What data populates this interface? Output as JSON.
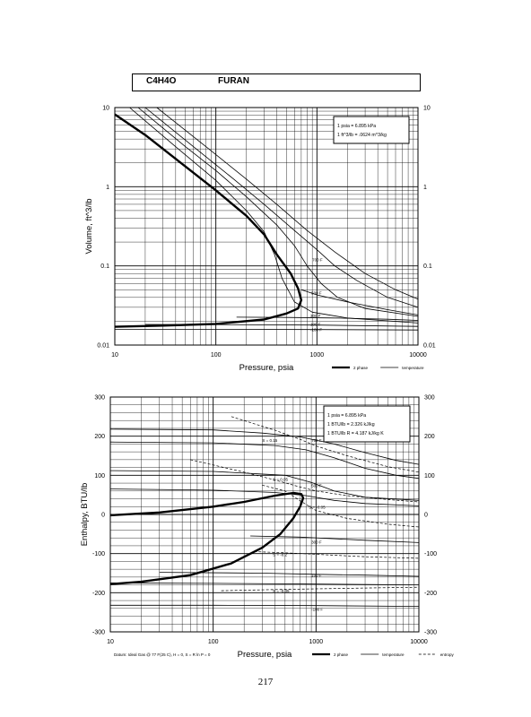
{
  "header": {
    "formula": "C4H4O",
    "name": "FURAN"
  },
  "page_number": "217",
  "chart_data": [
    {
      "type": "line",
      "title": "",
      "xlabel": "Pressure,  psia",
      "ylabel": "Volume, ft^3/lb",
      "xscale": "log",
      "yscale": "log",
      "xlim": [
        10,
        10000
      ],
      "ylim": [
        0.01,
        10
      ],
      "x_ticks": [
        "10",
        "100",
        "1000",
        "10000"
      ],
      "y_ticks": [
        "10",
        "1",
        "0.1",
        "0.01"
      ],
      "grid": true,
      "legend_position": "bottom-right",
      "legend": [
        {
          "label": "2 phase",
          "style": "thick"
        },
        {
          "label": "temperature",
          "style": "thin"
        }
      ],
      "note_position": "top-right",
      "notes": [
        "1 psia = 6.895 kPa",
        "1 ft^3/lb = .0624 m^3/kg"
      ],
      "series": [
        {
          "name": "2 phase",
          "kind": "dome",
          "style": "thick",
          "points": [
            [
              10,
              8.2
            ],
            [
              20,
              4.5
            ],
            [
              50,
              1.8
            ],
            [
              100,
              0.9
            ],
            [
              200,
              0.43
            ],
            [
              300,
              0.25
            ],
            [
              400,
              0.14
            ],
            [
              550,
              0.08
            ],
            [
              650,
              0.052
            ],
            [
              700,
              0.037
            ],
            [
              650,
              0.029
            ],
            [
              500,
              0.025
            ],
            [
              300,
              0.021
            ],
            [
              100,
              0.0185
            ],
            [
              30,
              0.0176
            ],
            [
              10,
              0.017
            ]
          ]
        },
        {
          "name": "",
          "kind": "isotherm",
          "style": "thin",
          "points": [
            [
              14,
              10
            ],
            [
              40,
              3.2
            ],
            [
              100,
              1.2
            ],
            [
              200,
              0.5
            ],
            [
              300,
              0.27
            ],
            [
              380,
              0.14
            ],
            [
              450,
              0.07
            ],
            [
              600,
              0.035
            ],
            [
              900,
              0.026
            ],
            [
              2000,
              0.022
            ],
            [
              10000,
              0.019
            ]
          ]
        },
        {
          "name": "",
          "kind": "isotherm",
          "style": "thin",
          "points": [
            [
              17,
              10
            ],
            [
              50,
              3.2
            ],
            [
              100,
              1.6
            ],
            [
              200,
              0.75
            ],
            [
              400,
              0.33
            ],
            [
              600,
              0.18
            ],
            [
              800,
              0.1
            ],
            [
              1100,
              0.06
            ],
            [
              1600,
              0.04
            ],
            [
              3000,
              0.029
            ],
            [
              10000,
              0.023
            ]
          ]
        },
        {
          "name": "",
          "kind": "isotherm",
          "style": "thin",
          "points": [
            [
              20,
              10
            ],
            [
              60,
              3.2
            ],
            [
              150,
              1.25
            ],
            [
              300,
              0.6
            ],
            [
              600,
              0.28
            ],
            [
              1000,
              0.16
            ],
            [
              1500,
              0.1
            ],
            [
              2500,
              0.065
            ],
            [
              5000,
              0.04
            ],
            [
              10000,
              0.03
            ]
          ]
        },
        {
          "name": "700 F",
          "kind": "isotherm",
          "style": "thin",
          "points": [
            [
              26,
              10
            ],
            [
              80,
              3.2
            ],
            [
              200,
              1.25
            ],
            [
              400,
              0.6
            ],
            [
              800,
              0.28
            ],
            [
              1500,
              0.15
            ],
            [
              3000,
              0.08
            ],
            [
              6000,
              0.05
            ],
            [
              10000,
              0.038
            ]
          ]
        },
        {
          "name": "500 F",
          "kind": "isotherm",
          "style": "thin",
          "points": [
            [
              700,
              0.05
            ],
            [
              1000,
              0.043
            ],
            [
              2000,
              0.035
            ],
            [
              5000,
              0.028
            ],
            [
              10000,
              0.024
            ]
          ]
        },
        {
          "name": "300 F",
          "kind": "isotherm",
          "style": "thin",
          "points": [
            [
              160,
              0.0225
            ],
            [
              500,
              0.0223
            ],
            [
              1500,
              0.022
            ],
            [
              5000,
              0.0212
            ],
            [
              10000,
              0.0205
            ]
          ]
        },
        {
          "name": "100 F",
          "kind": "isotherm",
          "style": "thin",
          "points": [
            [
              20,
              0.0182
            ],
            [
              100,
              0.0181
            ],
            [
              1000,
              0.0179
            ],
            [
              10000,
              0.0172
            ]
          ]
        },
        {
          "name": "-100 F",
          "kind": "isotherm",
          "style": "thin",
          "points": [
            [
              10,
              0.0158
            ],
            [
              100,
              0.0158
            ],
            [
              1000,
              0.0157
            ],
            [
              10000,
              0.0155
            ]
          ]
        }
      ],
      "label_positions": [
        {
          "name": "700 F",
          "x": 900,
          "y": 0.12
        },
        {
          "name": "500 F",
          "x": 880,
          "y": 0.046
        },
        {
          "name": "300 F",
          "x": 860,
          "y": 0.0235
        },
        {
          "name": "100 F",
          "x": 860,
          "y": 0.0185
        },
        {
          "name": "-100 F",
          "x": 860,
          "y": 0.0158
        }
      ]
    },
    {
      "type": "line",
      "title": "",
      "xlabel": "Pressure,  psia",
      "ylabel": "Enthalpy, BTU/lb",
      "xscale": "log",
      "yscale": "linear",
      "xlim": [
        10,
        10000
      ],
      "ylim": [
        -300,
        300
      ],
      "x_ticks": [
        "10",
        "100",
        "1000",
        "10000"
      ],
      "y_ticks": [
        "300",
        "200",
        "100",
        "0",
        "-100",
        "-200",
        "-300"
      ],
      "grid": true,
      "legend_position": "bottom-right",
      "legend": [
        {
          "label": "2 phase",
          "style": "thick"
        },
        {
          "label": "temperature",
          "style": "thin"
        },
        {
          "label": "entropy",
          "style": "dashed"
        }
      ],
      "note_position": "top-right",
      "notes": [
        "1 psia = 6.895 kPa",
        "1 BTU/lb = 2.326 kJ/kg",
        "1 BTU/lb R = 4.187 kJ/kg K"
      ],
      "footnote": "Datum: Ideal Gas @ 77 F(25 C),  H = 0,  S = R ln P = 0",
      "series": [
        {
          "name": "2 phase",
          "kind": "dome",
          "style": "thick",
          "points": [
            [
              10,
              -2
            ],
            [
              30,
              5
            ],
            [
              100,
              20
            ],
            [
              200,
              32
            ],
            [
              400,
              48
            ],
            [
              600,
              55
            ],
            [
              720,
              52
            ],
            [
              750,
              42
            ],
            [
              700,
              20
            ],
            [
              600,
              -10
            ],
            [
              450,
              -50
            ],
            [
              300,
              -85
            ],
            [
              150,
              -125
            ],
            [
              60,
              -155
            ],
            [
              20,
              -172
            ],
            [
              10,
              -178
            ]
          ]
        },
        {
          "name": "700 F",
          "kind": "isotherm",
          "style": "thin",
          "points": [
            [
              10,
              218
            ],
            [
              100,
              216
            ],
            [
              300,
              208
            ],
            [
              700,
              198
            ],
            [
              1500,
              180
            ],
            [
              3000,
              158
            ],
            [
              6000,
              138
            ],
            [
              10000,
              128
            ]
          ]
        },
        {
          "name": "",
          "kind": "isotherm",
          "style": "thin",
          "points": [
            [
              10,
              185
            ],
            [
              100,
              183
            ],
            [
              400,
              176
            ],
            [
              800,
              165
            ],
            [
              1500,
              145
            ],
            [
              3000,
              118
            ],
            [
              6000,
              100
            ],
            [
              10000,
              92
            ]
          ]
        },
        {
          "name": "500 F",
          "kind": "isotherm",
          "style": "thin",
          "points": [
            [
              10,
              112
            ],
            [
              100,
              110
            ],
            [
              500,
              100
            ],
            [
              900,
              82
            ],
            [
              1500,
              60
            ],
            [
              3000,
              44
            ],
            [
              10000,
              36
            ]
          ]
        },
        {
          "name": "",
          "kind": "isotherm",
          "style": "thin",
          "points": [
            [
              10,
              65
            ],
            [
              100,
              62
            ],
            [
              400,
              56
            ],
            [
              800,
              48
            ],
            [
              1500,
              36
            ],
            [
              3000,
              28
            ],
            [
              10000,
              22
            ]
          ]
        },
        {
          "name": "300 F",
          "kind": "isotherm",
          "style": "thin",
          "points": [
            [
              230,
              -55
            ],
            [
              700,
              -58
            ],
            [
              1500,
              -62
            ],
            [
              3000,
              -66
            ],
            [
              10000,
              -72
            ]
          ]
        },
        {
          "name": "100 F",
          "kind": "isotherm",
          "style": "thin",
          "points": [
            [
              30,
              -148
            ],
            [
              300,
              -150
            ],
            [
              1000,
              -153
            ],
            [
              3000,
              -155
            ],
            [
              10000,
              -158
            ]
          ]
        },
        {
          "name": "",
          "kind": "isotherm",
          "style": "thin",
          "points": [
            [
              10,
              -175
            ],
            [
              100,
              -176
            ],
            [
              1000,
              -178
            ],
            [
              10000,
              -180
            ]
          ]
        },
        {
          "name": "-100 F",
          "kind": "isotherm",
          "style": "thin",
          "points": [
            [
              10,
              -232
            ],
            [
              100,
              -232
            ],
            [
              1000,
              -233
            ],
            [
              10000,
              -235
            ]
          ]
        },
        {
          "name": "S = 0.15",
          "kind": "entropy",
          "style": "dashed",
          "points": [
            [
              150,
              250
            ],
            [
              400,
              215
            ],
            [
              700,
              192
            ],
            [
              1000,
              175
            ],
            [
              2000,
              150
            ],
            [
              5000,
              122
            ],
            [
              10000,
              108
            ]
          ]
        },
        {
          "name": "S = 0.05",
          "kind": "entropy",
          "style": "dashed",
          "points": [
            [
              60,
              140
            ],
            [
              200,
              108
            ],
            [
              400,
              88
            ],
            [
              700,
              70
            ],
            [
              1000,
              60
            ],
            [
              2000,
              48
            ],
            [
              5000,
              38
            ],
            [
              10000,
              32
            ]
          ]
        },
        {
          "name": "S = -0.05",
          "kind": "entropy",
          "style": "dashed",
          "points": [
            [
              300,
              75
            ],
            [
              500,
              60
            ],
            [
              700,
              35
            ],
            [
              1000,
              10
            ],
            [
              2000,
              -10
            ],
            [
              5000,
              -25
            ],
            [
              10000,
              -32
            ]
          ]
        },
        {
          "name": "S = -0.2",
          "kind": "entropy",
          "style": "dashed",
          "points": [
            [
              250,
              -95
            ],
            [
              500,
              -98
            ],
            [
              1000,
              -102
            ],
            [
              3000,
              -108
            ],
            [
              10000,
              -112
            ]
          ]
        },
        {
          "name": "S = -0.35",
          "kind": "entropy",
          "style": "dashed",
          "points": [
            [
              120,
              -195
            ],
            [
              400,
              -192
            ],
            [
              1000,
              -190
            ],
            [
              3000,
              -188
            ],
            [
              10000,
              -186
            ]
          ]
        }
      ],
      "label_positions": [
        {
          "name": "700 F",
          "x": 900,
          "y": 190
        },
        {
          "name": "S = 0.15",
          "x": 300,
          "y": 190
        },
        {
          "name": "S = 0.05",
          "x": 380,
          "y": 90
        },
        {
          "name": "500 F",
          "x": 900,
          "y": 75
        },
        {
          "name": "S = -0.05",
          "x": 850,
          "y": 20
        },
        {
          "name": "300 F",
          "x": 900,
          "y": -70
        },
        {
          "name": "S = -0.2",
          "x": 380,
          "y": -102
        },
        {
          "name": "100 F",
          "x": 900,
          "y": -155
        },
        {
          "name": "S = -0.35",
          "x": 380,
          "y": -195
        },
        {
          "name": "-100 F",
          "x": 900,
          "y": -242
        }
      ]
    }
  ]
}
